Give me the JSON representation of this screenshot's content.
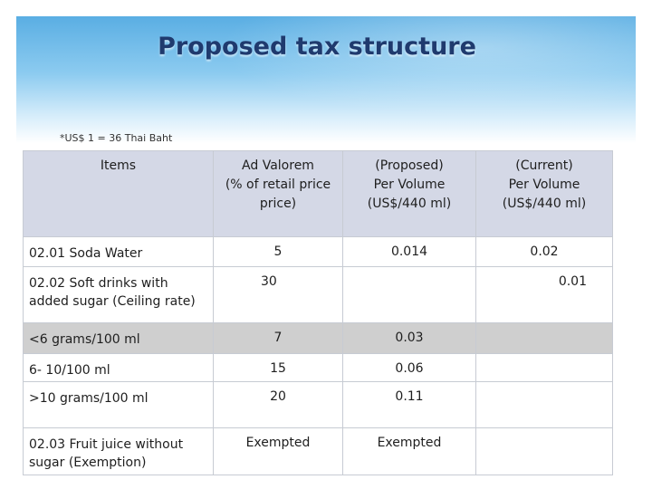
{
  "slide": {
    "title": "Proposed tax structure",
    "note": "*US$ 1 = 36 Thai Baht"
  },
  "table": {
    "headers": [
      [
        "Items"
      ],
      [
        "Ad Valorem",
        "(% of retail price",
        "price)"
      ],
      [
        "(Proposed)",
        "Per Volume",
        "(US$/440 ml)"
      ],
      [
        "(Current)",
        "Per Volume",
        "(US$/440 ml)"
      ]
    ],
    "rows": [
      {
        "item": [
          "02.01 Soda Water"
        ],
        "ad_valorem": "5",
        "proposed": "0.014",
        "current": "0.02"
      },
      {
        "item": [
          "02.02 Soft drinks with",
          "added sugar  (Ceiling rate)"
        ],
        "ad_valorem": "30",
        "proposed": "",
        "current": "0.01"
      },
      {
        "item": [
          "<6 grams/100 ml"
        ],
        "ad_valorem": "7",
        "proposed": "0.03",
        "current": ""
      },
      {
        "item": [
          "6- 10/100 ml"
        ],
        "ad_valorem": "15",
        "proposed": "0.06",
        "current": ""
      },
      {
        "item": [
          ">10 grams/100 ml"
        ],
        "ad_valorem": "20",
        "proposed": "0.11",
        "current": ""
      },
      {
        "item": [
          "02.03 Fruit juice  without",
          "sugar (Exemption)"
        ],
        "ad_valorem": "Exempted",
        "proposed": "Exempted",
        "current": ""
      }
    ]
  },
  "colors": {
    "title": "#1f3a6e",
    "header_band_top": "#5aaee3",
    "table_header_bg": "#d4d8e6",
    "highlight_row_bg": "#cfcfcf"
  }
}
